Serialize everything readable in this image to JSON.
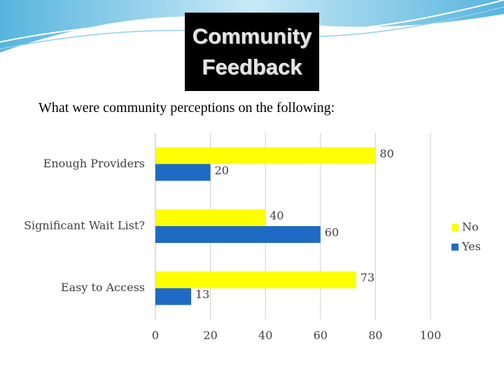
{
  "chart_data": {
    "type": "hbar",
    "title": "Community Feedback",
    "subtitle": "What were community perceptions on the following:",
    "categories": [
      "Enough Providers",
      "Significant Wait List?",
      "Easy to Access"
    ],
    "series": [
      {
        "name": "No",
        "color": "#ffff00",
        "values": [
          80,
          40,
          73
        ]
      },
      {
        "name": "Yes",
        "color": "#1f6bc4",
        "values": [
          20,
          60,
          13
        ]
      }
    ],
    "xlim": [
      0,
      100
    ],
    "xticks": [
      0,
      20,
      40,
      60,
      80,
      100
    ],
    "grid": true,
    "legend": "right"
  }
}
